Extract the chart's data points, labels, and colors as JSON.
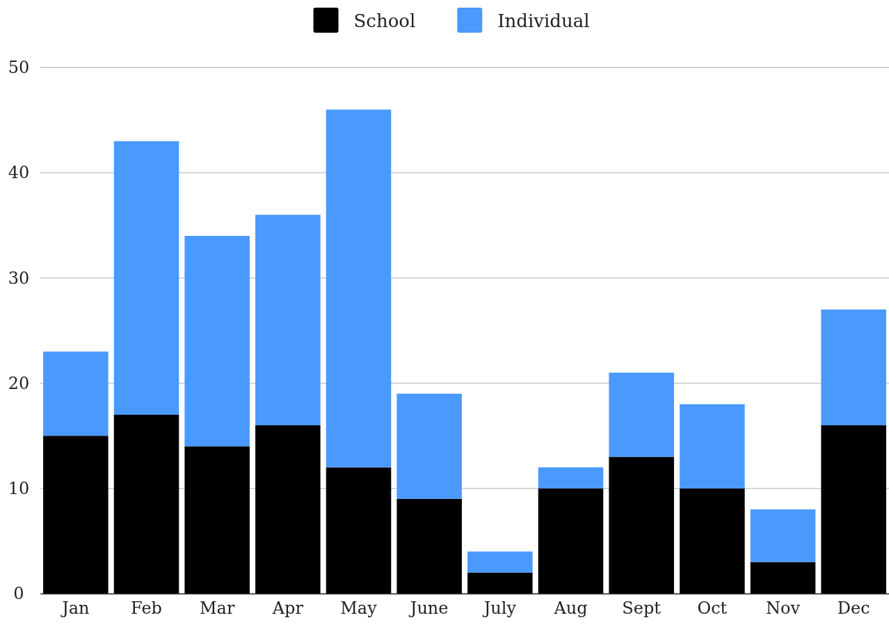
{
  "chart_data": {
    "type": "bar",
    "stacked": true,
    "categories": [
      "Jan",
      "Feb",
      "Mar",
      "Apr",
      "May",
      "June",
      "July",
      "Aug",
      "Sept",
      "Oct",
      "Nov",
      "Dec"
    ],
    "series": [
      {
        "name": "School",
        "color": "#000000",
        "values": [
          15,
          17,
          14,
          16,
          12,
          9,
          2,
          10,
          13,
          10,
          3,
          16
        ]
      },
      {
        "name": "Individual",
        "color": "#4a99fd",
        "values": [
          8,
          26,
          20,
          20,
          34,
          10,
          2,
          2,
          8,
          8,
          5,
          11
        ]
      }
    ],
    "ylim": [
      0,
      50
    ],
    "yticks": [
      0,
      10,
      20,
      30,
      40,
      50
    ],
    "grid": "y",
    "legend": "top"
  }
}
